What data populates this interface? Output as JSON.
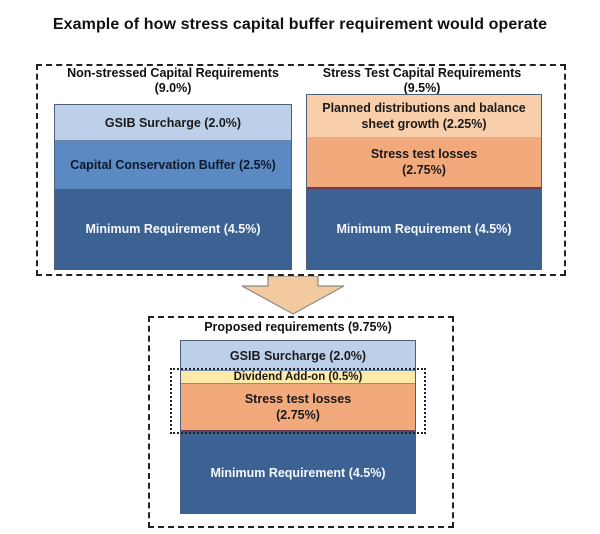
{
  "title": "Example of how stress capital buffer requirement would operate",
  "non_stressed": {
    "heading_line1": "Non-stressed Capital Requirements",
    "heading_line2": "(9.0%)",
    "gsib": "GSIB Surcharge (2.0%)",
    "ccb": "Capital Conservation Buffer (2.5%)",
    "minimum": "Minimum Requirement (4.5%)"
  },
  "stress_test": {
    "heading_line1": "Stress Test Capital Requirements",
    "heading_line2": "(9.5%)",
    "planned_line1": "Planned distributions and balance",
    "planned_line2": "sheet growth (2.25%)",
    "losses_line1": "Stress test losses",
    "losses_line2": "(2.75%)",
    "minimum": "Minimum Requirement (4.5%)"
  },
  "proposed": {
    "heading": "Proposed requirements (9.75%)",
    "gsib": "GSIB Surcharge (2.0%)",
    "dividend": "Dividend Add-on (0.5%)",
    "losses_line1": "Stress test losses",
    "losses_line2": "(2.75%)",
    "minimum": "Minimum Requirement (4.5%)"
  },
  "colors": {
    "light_blue": "#bdd0ea",
    "mid_blue": "#5b89c2",
    "dark_blue": "#3c6293",
    "peach": "#f8ceab",
    "orange": "#f2a97b",
    "yellow": "#fde9a8",
    "arrow_fill": "#f3c9a0",
    "arrow_stroke": "#8a8a8a"
  }
}
